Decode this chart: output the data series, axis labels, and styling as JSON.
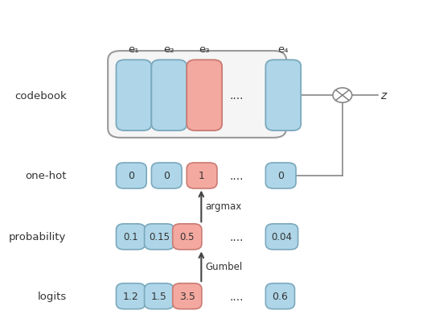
{
  "bg_color": "#ffffff",
  "box_blue_face": "#aed6e8",
  "box_blue_edge": "#7aa8bc",
  "box_red_face": "#f4a9a0",
  "box_red_edge": "#c97a72",
  "text_color": "#333333",
  "arrow_color": "#444444",
  "line_color": "#888888",
  "codebook_labels": [
    "e₁",
    "e₂",
    "e₃",
    "e₄"
  ],
  "onehot_values": [
    "0",
    "0",
    "1",
    "0"
  ],
  "prob_values": [
    "0.1",
    "0.15",
    "0.5",
    "0.04"
  ],
  "logit_values": [
    "1.2",
    "1.5",
    "3.5",
    "0.6"
  ]
}
